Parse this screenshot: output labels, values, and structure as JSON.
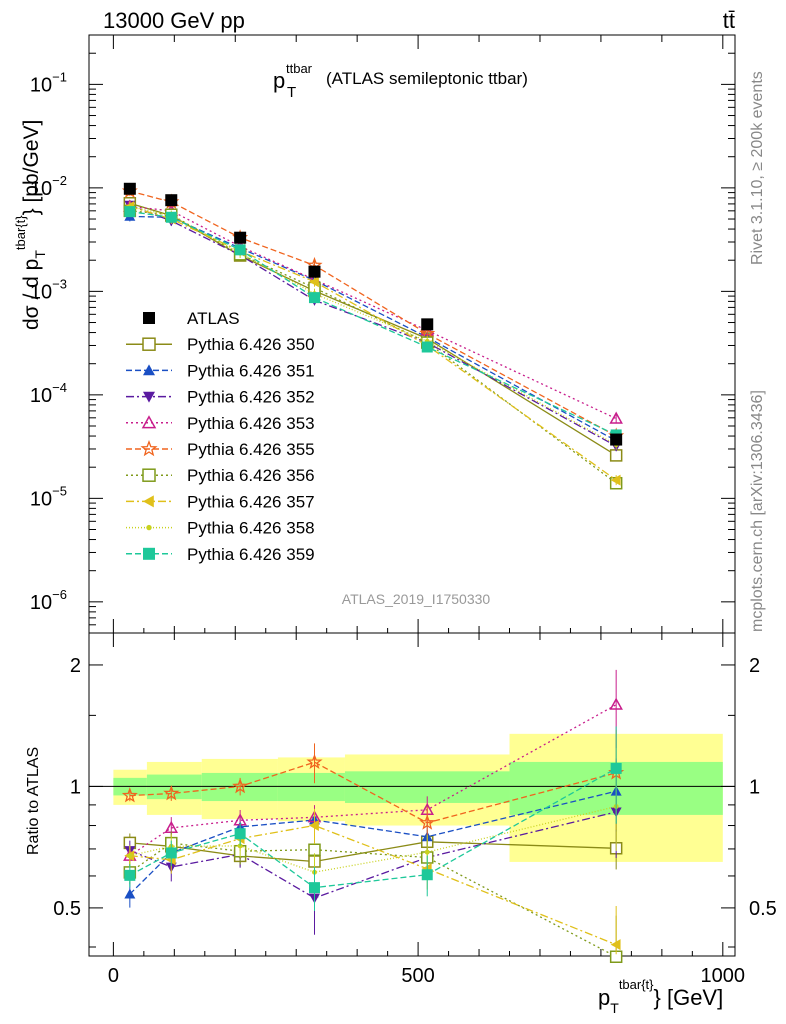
{
  "header": {
    "left": "13000 GeV pp",
    "right": "tt̄"
  },
  "title": {
    "main": "p",
    "sub": "T",
    "sup": "ttbar",
    "rest": "(ATLAS semileptonic ttbar)"
  },
  "side_labels": {
    "rivet": "Rivet 3.1.10, ≥ 200k events",
    "mcplots": "mcplots.cern.ch [arXiv:1306.3436]"
  },
  "watermark": "ATLAS_2019_I1750330",
  "ratio_ylabel": "Ratio to ATLAS",
  "chart_data": {
    "type": "scatter",
    "title": "p_T^ttbar (ATLAS semileptonic ttbar)",
    "xlabel": "p_T^{tbar{t}} [GeV]",
    "ylabel": "dσ / d p_T^{tbar{t}} [pb/GeV]",
    "xlim": [
      -40,
      1020
    ],
    "ylim": [
      5e-07,
      0.3
    ],
    "yscale": "log",
    "x_ticks": [
      0,
      500,
      1000
    ],
    "y_ticks": [
      "10^-6",
      "10^-5",
      "10^-4",
      "10^-3",
      "10^-2",
      "10^-1"
    ],
    "x": [
      27,
      95,
      208,
      330,
      515,
      825
    ],
    "data": {
      "name": "ATLAS",
      "values": [
        0.0098,
        0.0076,
        0.0033,
        0.00155,
        0.00048,
        3.7e-05
      ],
      "band_edges": [
        0,
        55,
        145,
        270,
        380,
        650,
        1000
      ],
      "band_inner": [
        0.05,
        0.07,
        0.08,
        0.08,
        0.09,
        0.15
      ],
      "band_outer": [
        0.1,
        0.15,
        0.17,
        0.18,
        0.2,
        0.35
      ]
    },
    "series": [
      {
        "name": "Pythia 6.426 350",
        "color": "#8b8b17",
        "dash": "",
        "marker": "open-square",
        "values": [
          0.0071,
          0.0054,
          0.00222,
          0.00101,
          0.00035,
          2.6e-05
        ],
        "ratio_err": [
          0.04,
          0.03,
          0.04,
          0.06,
          0.05,
          0.08
        ]
      },
      {
        "name": "Pythia 6.426 351",
        "color": "#1a4fc4",
        "dash": "6,3",
        "marker": "filled-triangle-up",
        "values": [
          0.0053,
          0.0052,
          0.00262,
          0.00128,
          0.00036,
          3.6e-05
        ],
        "ratio_err": [
          0.04,
          0.05,
          0.05,
          0.06,
          0.06,
          0.2
        ]
      },
      {
        "name": "Pythia 6.426 352",
        "color": "#5a1aa0",
        "dash": "8,3,2,3",
        "marker": "filled-triangle-down",
        "values": [
          0.0068,
          0.0048,
          0.00224,
          0.00082,
          0.00032,
          3.2e-05
        ],
        "ratio_err": [
          0.04,
          0.05,
          0.05,
          0.1,
          0.07,
          0.2
        ]
      },
      {
        "name": "Pythia 6.426 353",
        "color": "#c81e8c",
        "dash": "2,3",
        "marker": "open-triangle-up",
        "values": [
          0.0066,
          0.006,
          0.00272,
          0.0013,
          0.00042,
          5.9e-05
        ],
        "ratio_err": [
          0.04,
          0.05,
          0.05,
          0.06,
          0.07,
          0.35
        ]
      },
      {
        "name": "Pythia 6.426 355",
        "color": "#f0641e",
        "dash": "6,3",
        "marker": "open-star",
        "values": [
          0.0093,
          0.0073,
          0.0033,
          0.00178,
          0.00039,
          4e-05
        ],
        "ratio_err": [
          0.03,
          0.04,
          0.05,
          0.13,
          0.08,
          0.3
        ]
      },
      {
        "name": "Pythia 6.426 356",
        "color": "#7f9a1a",
        "dash": "2,3",
        "marker": "open-square",
        "values": [
          0.006,
          0.0055,
          0.00228,
          0.00108,
          0.00032,
          1.4e-05
        ],
        "ratio_err": [
          0.04,
          0.05,
          0.05,
          0.07,
          0.07,
          0.1
        ]
      },
      {
        "name": "Pythia 6.426 357",
        "color": "#e0c01a",
        "dash": "8,3,2,3",
        "marker": "filled-triangle-left",
        "values": [
          0.0066,
          0.005,
          0.00245,
          0.00124,
          0.0003,
          1.5e-05
        ],
        "ratio_err": [
          0.04,
          0.05,
          0.05,
          0.08,
          0.07,
          0.1
        ]
      },
      {
        "name": "Pythia 6.426 358",
        "color": "#c8d21e",
        "dash": "1,2",
        "marker": "filled-dot",
        "values": [
          0.0066,
          0.0054,
          0.00235,
          0.00095,
          0.00033,
          3.3e-05
        ],
        "ratio_err": [
          0.04,
          0.05,
          0.05,
          0.07,
          0.07,
          0.2
        ]
      },
      {
        "name": "Pythia 6.426 359",
        "color": "#1ec89a",
        "dash": "6,3",
        "marker": "filled-square",
        "values": [
          0.0059,
          0.0052,
          0.00252,
          0.00087,
          0.00029,
          4.1e-05
        ],
        "ratio_err": [
          0.04,
          0.05,
          0.05,
          0.07,
          0.07,
          0.3
        ]
      }
    ],
    "ratio": {
      "ylim": [
        0.38,
        2.4
      ],
      "yscale": "log",
      "y_ticks": [
        0.5,
        1,
        2
      ]
    },
    "legend_placement": "center-left"
  }
}
